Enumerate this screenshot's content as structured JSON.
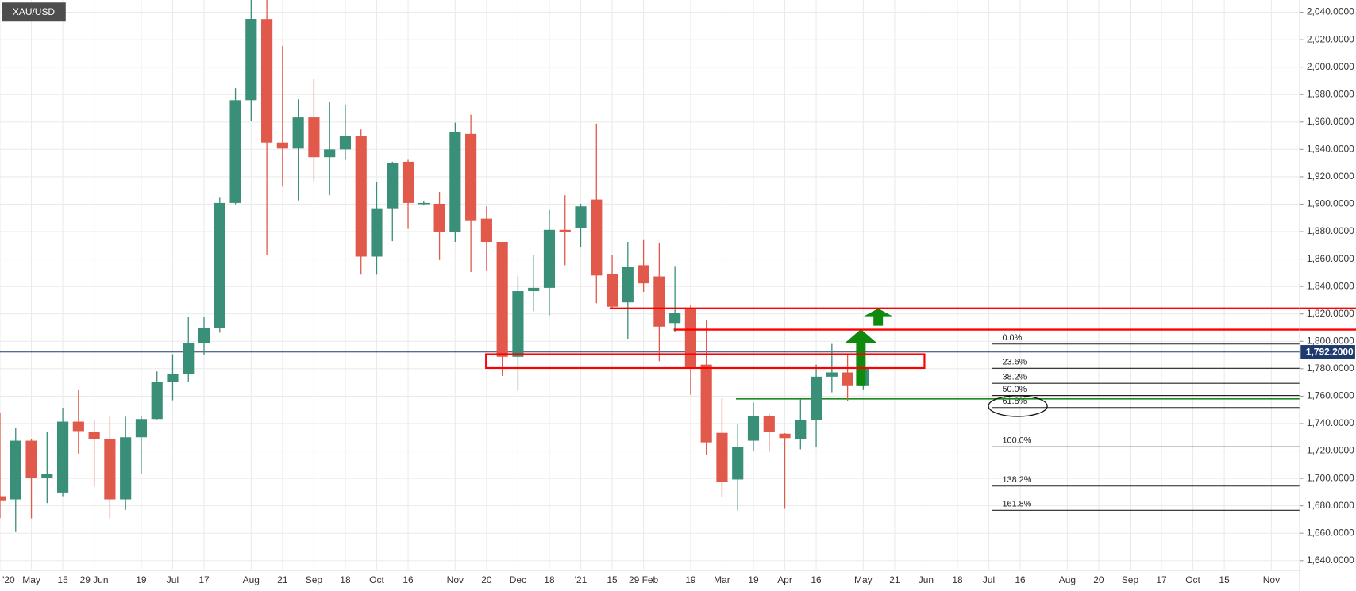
{
  "chart_data": {
    "type": "candlestick",
    "symbol": "XAU/USD",
    "categories": [
      "'20",
      null,
      "May",
      null,
      "15",
      null,
      "29 Jun",
      null,
      null,
      "19",
      null,
      "Jul",
      null,
      "17",
      null,
      null,
      "Aug",
      null,
      "21",
      null,
      "Sep",
      null,
      "18",
      null,
      "Oct",
      null,
      "16",
      null,
      null,
      "Nov",
      null,
      "20",
      null,
      "Dec",
      null,
      "18",
      null,
      "'21",
      null,
      "15",
      null,
      "29 Feb",
      null,
      null,
      "19",
      null,
      "Mar",
      null,
      "19",
      null,
      "Apr",
      null,
      "16",
      null,
      null,
      "May",
      null,
      "21",
      null,
      "Jun",
      null,
      "18",
      null,
      "Jul",
      null,
      "16",
      null,
      null,
      "Aug",
      null,
      "20",
      null,
      "Sep",
      null,
      "17",
      null,
      "Oct",
      null,
      "15",
      null,
      null,
      "Nov",
      null
    ],
    "open": [
      1687,
      1684.7,
      1727.5,
      1700.4,
      1689.7,
      1741.4,
      1734,
      1728.8,
      1684.7,
      1730,
      1743.3,
      1770.4,
      1776,
      1798.8,
      1809.5,
      1900.9,
      1975.9,
      2035,
      1945,
      1940.6,
      1963.3,
      1934.3,
      1940,
      1950,
      1861.8,
      1897,
      1931,
      1900.3,
      1900.3,
      1880,
      1951.3,
      1889.5,
      1872.5,
      1788.7,
      1836.6,
      1839,
      1881.3,
      1882.6,
      1903.4,
      1849,
      1828.4,
      1855.5,
      1847.3,
      1813.3,
      1824,
      1783,
      1733.2,
      1699.2,
      1727.5,
      1745.2,
      1732.6,
      1728.8,
      1742.7,
      1774.2,
      1777.3,
      1767.9,
      null,
      null,
      null,
      null,
      null,
      null,
      null,
      null,
      null,
      null,
      null,
      null,
      null,
      null,
      null,
      null,
      null,
      null,
      null,
      null,
      null,
      null,
      null,
      null,
      null,
      null,
      null
    ],
    "high": [
      1748,
      1737,
      1729,
      1733.8,
      1751.5,
      1764.7,
      1743,
      1745.2,
      1745,
      1745.8,
      1778,
      1790.6,
      1817.7,
      1817.7,
      1905.3,
      1984.7,
      2049,
      2049,
      2015.6,
      1976.5,
      1991.6,
      1974.6,
      1972.7,
      1954.5,
      1916,
      1931,
      1932.4,
      1902,
      1909,
      1959.5,
      1965.2,
      1898.4,
      1872.5,
      1847.3,
      1863,
      1895.8,
      1906.5,
      1900.3,
      1958.9,
      1863,
      1872.5,
      1874.4,
      1871.9,
      1854.9,
      1826.5,
      1815.2,
      1758.4,
      1739.5,
      1755.3,
      1747.1,
      1733,
      1757.8,
      1783,
      1798.1,
      1790.6,
      1783.6,
      null,
      null,
      null,
      null,
      null,
      null,
      null,
      null,
      null,
      null,
      null,
      null,
      null,
      null,
      null,
      null,
      null,
      null,
      null,
      null,
      null,
      null,
      null,
      null,
      null,
      null,
      null
    ],
    "low": [
      1671,
      1661.4,
      1670.8,
      1682,
      1687,
      1718,
      1694,
      1670.8,
      1677,
      1703.6,
      1743,
      1757,
      1770.4,
      1790,
      1806.3,
      1900,
      1960.7,
      1863,
      1912.8,
      1902.8,
      1916.6,
      1906.5,
      1932.4,
      1848.6,
      1848.6,
      1873,
      1882,
      1899,
      1859.3,
      1872.5,
      1850.5,
      1851.7,
      1774.8,
      1764,
      1822,
      1819,
      1855.5,
      1869,
      1827.8,
      1824,
      1801.9,
      1836,
      1785.5,
      1807,
      1761,
      1716.8,
      1686.6,
      1676.5,
      1720,
      1719.4,
      1677.8,
      1721.2,
      1723.1,
      1762.8,
      1756.5,
      1765,
      null,
      null,
      null,
      null,
      null,
      null,
      null,
      null,
      null,
      null,
      null,
      null,
      null,
      null,
      null,
      null,
      null,
      null,
      null,
      null,
      null,
      null,
      null,
      null,
      null,
      null,
      null
    ],
    "close": [
      1684,
      1727.5,
      1700.4,
      1703,
      1741.4,
      1734.5,
      1728.8,
      1684.7,
      1730,
      1743.3,
      1770.4,
      1776,
      1798.8,
      1810,
      1900.9,
      1975.9,
      2035.1,
      1945,
      1940.6,
      1963.3,
      1934.3,
      1940,
      1950,
      1861.8,
      1897,
      1929.9,
      1900.9,
      1900.9,
      1880,
      1952.6,
      1888.3,
      1872.5,
      1788.7,
      1836.6,
      1839,
      1881.3,
      1880,
      1898.4,
      1848,
      1825.2,
      1854.2,
      1842.3,
      1810.7,
      1820.8,
      1781.1,
      1726.3,
      1697.3,
      1723.1,
      1745.2,
      1733.8,
      1729.4,
      1742.7,
      1774.2,
      1777.3,
      1767.9,
      1781,
      null,
      null,
      null,
      null,
      null,
      null,
      null,
      null,
      null,
      null,
      null,
      null,
      null,
      null,
      null,
      null,
      null,
      null,
      null,
      null,
      null,
      null,
      null,
      null,
      null,
      null,
      null
    ],
    "up_color": "#3a8f79",
    "down_color": "#e0594b",
    "ylim": [
      1633,
      2049
    ],
    "yticks": [
      {
        "value": 1640,
        "label": "1,640.0000"
      },
      {
        "value": 1660,
        "label": "1,660.0000"
      },
      {
        "value": 1680,
        "label": "1,680.0000"
      },
      {
        "value": 1700,
        "label": "1,700.0000"
      },
      {
        "value": 1720,
        "label": "1,720.0000"
      },
      {
        "value": 1740,
        "label": "1,740.0000"
      },
      {
        "value": 1760,
        "label": "1,760.0000"
      },
      {
        "value": 1780,
        "label": "1,780.0000"
      },
      {
        "value": 1800,
        "label": "1,800.0000"
      },
      {
        "value": 1820,
        "label": "1,820.0000"
      },
      {
        "value": 1840,
        "label": "1,840.0000"
      },
      {
        "value": 1860,
        "label": "1,860.0000"
      },
      {
        "value": 1880,
        "label": "1,880.0000"
      },
      {
        "value": 1900,
        "label": "1,900.0000"
      },
      {
        "value": 1920,
        "label": "1,920.0000"
      },
      {
        "value": 1940,
        "label": "1,940.0000"
      },
      {
        "value": 1960,
        "label": "1,960.0000"
      },
      {
        "value": 1980,
        "label": "1,980.0000"
      },
      {
        "value": 2000,
        "label": "2,000.0000"
      },
      {
        "value": 2020,
        "label": "2,020.0000"
      },
      {
        "value": 2040,
        "label": "2,040.0000"
      }
    ],
    "grid": true,
    "last_price": {
      "value": 1792.2,
      "label": "1,792.2000",
      "color": "#1f3b6e"
    },
    "zone": {
      "low": 1780.5,
      "high": 1790.6,
      "color": "#ff0000"
    },
    "resistance": [
      1824,
      1808.5
    ],
    "resistance_color": "#ff0000",
    "support": 1758,
    "support_color": "#1a8a1a",
    "fib": {
      "labels": [
        "0.0%",
        "23.6%",
        "38.2%",
        "50.0%",
        "61.8%",
        "100.0%",
        "138.2%",
        "161.8%"
      ],
      "levels": [
        1798,
        1780.3,
        1769.4,
        1760.5,
        1751.7,
        1723,
        1694.4,
        1676.7
      ]
    }
  }
}
